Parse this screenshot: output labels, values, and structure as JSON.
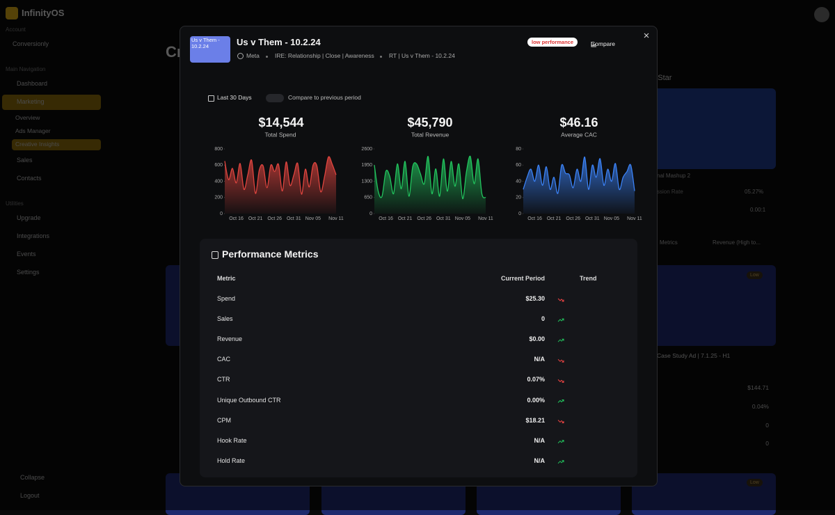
{
  "app": {
    "brand": "InfinityOS",
    "account_label": "Account",
    "account": "Conversionly",
    "main_nav_label": "Main Navigation",
    "nav": [
      "Dashboard",
      "Marketing",
      "Overview",
      "Ads Manager",
      "Creative Insights",
      "Sales",
      "Contacts"
    ],
    "utilities_label": "Utilities",
    "utilities": [
      "Upgrade",
      "Integrations",
      "Events",
      "Settings"
    ],
    "footer": [
      "Collapse",
      "Logout"
    ]
  },
  "background": {
    "heading": "Cr",
    "section": "ng Star",
    "card_title": "nal Mashup 2",
    "stat_label": "ssion Rate",
    "stat_values": [
      "05.27%",
      "0.00:1"
    ],
    "sort": [
      "Metrics",
      "Revenue (High to..."
    ],
    "badge": "Low",
    "card2_title": "Case Study Ad | 7.1.25 - H1",
    "card2_values": [
      "$144.71",
      "0.04%",
      "0",
      "0"
    ]
  },
  "modal": {
    "thumb_alt": "Us v Them - 10.2.24",
    "title": "Us v Them - 10.2.24",
    "meta": [
      "Meta",
      "IRE: Relationship | Close | Awareness",
      "RT | Us v Them - 10.2.24"
    ],
    "badge": "low performance",
    "compare": "Compare",
    "date_range": "Last 30 Days",
    "toggle_label": "Compare to previous period"
  },
  "chart_data": [
    {
      "type": "area",
      "title": "$14,544",
      "subtitle": "Total Spend",
      "color": "#e0453f",
      "categories": [
        null,
        null,
        null,
        "Oct 16",
        null,
        null,
        null,
        null,
        "Oct 21",
        null,
        null,
        null,
        null,
        "Oct 26",
        null,
        null,
        null,
        null,
        "Oct 31",
        null,
        null,
        null,
        null,
        "Nov 05",
        null,
        null,
        null,
        null,
        null,
        "Nov 11"
      ],
      "values": [
        650,
        420,
        560,
        380,
        620,
        300,
        480,
        660,
        250,
        540,
        590,
        320,
        600,
        520,
        610,
        280,
        640,
        350,
        480,
        620,
        240,
        550,
        330,
        600,
        590,
        270,
        460,
        700,
        610,
        480
      ],
      "ylim": [
        0,
        800
      ],
      "yticks": [
        0,
        200,
        400,
        600,
        800
      ]
    },
    {
      "type": "area",
      "title": "$45,790",
      "subtitle": "Total Revenue",
      "color": "#22c55e",
      "categories": [
        null,
        null,
        null,
        "Oct 16",
        null,
        null,
        null,
        null,
        "Oct 21",
        null,
        null,
        null,
        null,
        "Oct 26",
        null,
        null,
        null,
        null,
        "Oct 31",
        null,
        null,
        null,
        null,
        "Nov 05",
        null,
        null,
        null,
        null,
        null,
        "Nov 11"
      ],
      "values": [
        1950,
        900,
        700,
        1700,
        1500,
        800,
        2000,
        1000,
        2100,
        700,
        1900,
        2000,
        1600,
        1200,
        2300,
        800,
        1800,
        700,
        2200,
        900,
        2100,
        1100,
        2000,
        600,
        1700,
        2300,
        1200,
        2200,
        800,
        650
      ],
      "ylim": [
        0,
        2600
      ],
      "yticks": [
        0,
        650,
        1300,
        1950,
        2600
      ]
    },
    {
      "type": "area",
      "title": "$46.16",
      "subtitle": "Average CAC",
      "color": "#3b82f6",
      "categories": [
        null,
        null,
        null,
        "Oct 16",
        null,
        null,
        null,
        null,
        "Oct 21",
        null,
        null,
        null,
        null,
        "Oct 26",
        null,
        null,
        null,
        null,
        "Oct 31",
        null,
        null,
        null,
        null,
        "Nov 05",
        null,
        null,
        null,
        null,
        null,
        "Nov 11"
      ],
      "values": [
        30,
        45,
        55,
        40,
        60,
        35,
        58,
        30,
        45,
        25,
        60,
        50,
        48,
        32,
        55,
        40,
        70,
        30,
        60,
        45,
        68,
        35,
        55,
        40,
        62,
        30,
        45,
        52,
        60,
        28
      ],
      "ylim": [
        0,
        80
      ],
      "yticks": [
        0,
        20,
        40,
        60,
        80
      ]
    }
  ],
  "table": {
    "title": "Performance Metrics",
    "headers": [
      "Metric",
      "Current Period",
      "Trend"
    ],
    "rows": [
      [
        "Spend",
        "$25.30",
        "down"
      ],
      [
        "Sales",
        "0",
        "up"
      ],
      [
        "Revenue",
        "$0.00",
        "up"
      ],
      [
        "CAC",
        "N/A",
        "down"
      ],
      [
        "CTR",
        "0.07%",
        "down"
      ],
      [
        "Unique Outbound CTR",
        "0.00%",
        "up"
      ],
      [
        "CPM",
        "$18.21",
        "down"
      ],
      [
        "Hook Rate",
        "N/A",
        "up"
      ],
      [
        "Hold Rate",
        "N/A",
        "up"
      ]
    ]
  }
}
